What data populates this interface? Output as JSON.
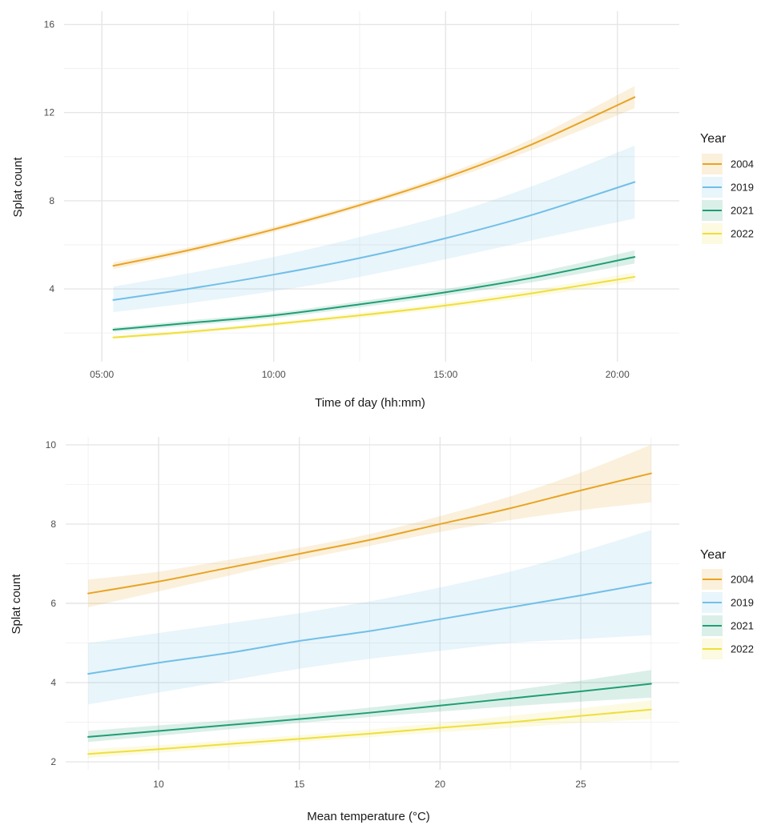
{
  "colors": {
    "2004": "#e8a423",
    "2019": "#71bfe8",
    "2021": "#1f9e74",
    "2022": "#efdf3c"
  },
  "chart_data": [
    {
      "type": "line",
      "title": "",
      "xlabel": "Time of day (hh:mm)",
      "ylabel": "Splat count",
      "xlim": [
        3.9,
        21.8
      ],
      "ylim": [
        0.7,
        16.6
      ],
      "x_ticks": [
        5,
        10,
        15,
        20
      ],
      "x_tick_labels": [
        "05:00",
        "10:00",
        "15:00",
        "20:00"
      ],
      "y_ticks": [
        4,
        8,
        12,
        16
      ],
      "y_tick_labels": [
        "4",
        "8",
        "12",
        "16"
      ],
      "legend_title": "Year",
      "legend_position": "right",
      "x": [
        5.333,
        7.5,
        10,
        12.5,
        15,
        17.5,
        20.5
      ],
      "series": [
        {
          "name": "2004",
          "values": [
            5.05,
            5.75,
            6.7,
            7.8,
            9.05,
            10.55,
            12.7
          ],
          "lower": [
            4.9,
            5.62,
            6.58,
            7.68,
            8.9,
            10.3,
            12.2
          ],
          "upper": [
            5.2,
            5.88,
            6.82,
            7.92,
            9.2,
            10.8,
            13.2
          ]
        },
        {
          "name": "2019",
          "values": [
            3.5,
            4.0,
            4.65,
            5.4,
            6.3,
            7.35,
            8.85
          ],
          "lower": [
            2.95,
            3.35,
            3.9,
            4.55,
            5.35,
            6.2,
            7.2
          ],
          "upper": [
            4.1,
            4.7,
            5.45,
            6.35,
            7.35,
            8.65,
            10.5
          ]
        },
        {
          "name": "2021",
          "values": [
            2.15,
            2.45,
            2.8,
            3.3,
            3.85,
            4.5,
            5.45
          ],
          "lower": [
            2.05,
            2.33,
            2.68,
            3.16,
            3.7,
            4.3,
            5.15
          ],
          "upper": [
            2.25,
            2.57,
            2.92,
            3.44,
            4.0,
            4.7,
            5.75
          ]
        },
        {
          "name": "2022",
          "values": [
            1.8,
            2.05,
            2.4,
            2.8,
            3.25,
            3.8,
            4.55
          ],
          "lower": [
            1.72,
            1.96,
            2.3,
            2.68,
            3.12,
            3.64,
            4.35
          ],
          "upper": [
            1.88,
            2.14,
            2.5,
            2.92,
            3.38,
            3.96,
            4.75
          ]
        }
      ]
    },
    {
      "type": "line",
      "title": "",
      "xlabel": "Mean temperature (°C)",
      "ylabel": "Splat count",
      "xlim": [
        6.7,
        28.5
      ],
      "ylim": [
        1.8,
        10.2
      ],
      "x_ticks": [
        10,
        15,
        20,
        25
      ],
      "x_tick_labels": [
        "10",
        "15",
        "20",
        "25"
      ],
      "y_ticks": [
        2,
        4,
        6,
        8,
        10
      ],
      "y_tick_labels": [
        "2",
        "4",
        "6",
        "8",
        "10"
      ],
      "legend_title": "Year",
      "legend_position": "right",
      "x": [
        7.5,
        10,
        12.5,
        15,
        17.5,
        20,
        22.5,
        25,
        27.5
      ],
      "series": [
        {
          "name": "2004",
          "values": [
            6.25,
            6.55,
            6.9,
            7.25,
            7.6,
            8.0,
            8.4,
            8.85,
            9.28
          ],
          "lower": [
            5.9,
            6.3,
            6.7,
            7.1,
            7.45,
            7.8,
            8.1,
            8.35,
            8.55
          ],
          "upper": [
            6.6,
            6.8,
            7.1,
            7.4,
            7.75,
            8.2,
            8.7,
            9.3,
            10.0
          ]
        },
        {
          "name": "2019",
          "values": [
            4.22,
            4.5,
            4.75,
            5.05,
            5.3,
            5.6,
            5.9,
            6.2,
            6.52
          ],
          "lower": [
            3.45,
            3.75,
            4.05,
            4.35,
            4.6,
            4.8,
            5.0,
            5.1,
            5.2
          ],
          "upper": [
            5.0,
            5.25,
            5.5,
            5.75,
            6.05,
            6.4,
            6.8,
            7.3,
            7.85
          ]
        },
        {
          "name": "2021",
          "values": [
            2.63,
            2.78,
            2.93,
            3.08,
            3.24,
            3.42,
            3.6,
            3.78,
            3.97
          ],
          "lower": [
            2.5,
            2.66,
            2.82,
            2.98,
            3.13,
            3.27,
            3.4,
            3.52,
            3.62
          ],
          "upper": [
            2.78,
            2.92,
            3.05,
            3.2,
            3.37,
            3.57,
            3.8,
            4.05,
            4.32
          ]
        },
        {
          "name": "2022",
          "values": [
            2.2,
            2.32,
            2.45,
            2.58,
            2.71,
            2.86,
            3.0,
            3.16,
            3.32
          ],
          "lower": [
            2.1,
            2.23,
            2.36,
            2.5,
            2.62,
            2.75,
            2.86,
            2.98,
            3.08
          ],
          "upper": [
            2.32,
            2.42,
            2.54,
            2.67,
            2.82,
            2.98,
            3.16,
            3.35,
            3.55
          ]
        }
      ]
    }
  ]
}
